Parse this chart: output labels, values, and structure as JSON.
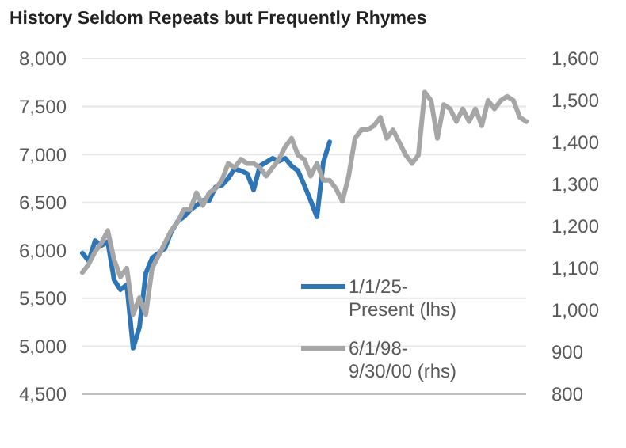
{
  "chart_data": {
    "type": "line",
    "title": "History Seldom Repeats but Frequently Rhymes",
    "categories": [
      null,
      null,
      null,
      null,
      null,
      null,
      null,
      null,
      null,
      null,
      null,
      null,
      null,
      null,
      null,
      null,
      null,
      null,
      null,
      null,
      null,
      null,
      null,
      null,
      null,
      null,
      null,
      null,
      null,
      null,
      null,
      null,
      null,
      null,
      null,
      null,
      null,
      null,
      null,
      null,
      null,
      null,
      null,
      null,
      null,
      null,
      null,
      null,
      null,
      null,
      null,
      null,
      null,
      null,
      null,
      null,
      null,
      null,
      null,
      null,
      null,
      null,
      null,
      null,
      null,
      null,
      null,
      null,
      null,
      null,
      null
    ],
    "series": [
      {
        "name": "1/1/25-Present (lhs)",
        "color": "#2e75b6",
        "values": [
          5970,
          5890,
          6100,
          6050,
          6090,
          5690,
          5590,
          5640,
          4980,
          5200,
          5760,
          5920,
          5970,
          6020,
          6190,
          6300,
          6350,
          6420,
          6470,
          6520,
          6520,
          6660,
          6680,
          6750,
          6850,
          6830,
          6800,
          6630,
          6880,
          6920,
          6960,
          6930,
          6960,
          6880,
          6830,
          6680,
          6520,
          6350,
          6920,
          7130,
          null,
          null,
          null,
          null,
          null,
          null,
          null,
          null,
          null,
          null,
          null,
          null,
          null,
          null,
          null,
          null,
          null,
          null,
          null,
          null,
          null,
          null,
          null,
          null,
          null,
          null,
          null,
          null,
          null,
          null,
          null
        ]
      },
      {
        "name": "6/1/98-9/30/00 (rhs)",
        "color": "#a6a6a6",
        "axis": "y2",
        "values": [
          1090,
          1110,
          1140,
          1160,
          1190,
          1120,
          1080,
          1100,
          990,
          1030,
          990,
          1100,
          1130,
          1160,
          1190,
          1210,
          1240,
          1240,
          1280,
          1250,
          1280,
          1290,
          1310,
          1350,
          1340,
          1360,
          1350,
          1350,
          1340,
          1320,
          1340,
          1360,
          1390,
          1410,
          1370,
          1360,
          1320,
          1350,
          1310,
          1310,
          1290,
          1260,
          1320,
          1410,
          1430,
          1430,
          1440,
          1460,
          1410,
          1430,
          1400,
          1370,
          1350,
          1370,
          1520,
          1500,
          1410,
          1490,
          1480,
          1450,
          1480,
          1450,
          1480,
          1440,
          1500,
          1480,
          1500,
          1510,
          1500,
          1460,
          1450
        ]
      }
    ],
    "ylim": [
      4500,
      8000
    ],
    "yticks": [
      {
        "value": 4500,
        "label": "4,500"
      },
      {
        "value": 5000,
        "label": "5,000"
      },
      {
        "value": 5500,
        "label": "5,500"
      },
      {
        "value": 6000,
        "label": "6,000"
      },
      {
        "value": 6500,
        "label": "6,500"
      },
      {
        "value": 7000,
        "label": "7,000"
      },
      {
        "value": 7500,
        "label": "7,500"
      },
      {
        "value": 8000,
        "label": "8,000"
      }
    ],
    "y2lim": [
      800,
      1600
    ],
    "y2ticks": [
      800,
      900,
      {
        "value": 1000,
        "label": "1,000"
      },
      {
        "value": 1100,
        "label": "1,100"
      },
      {
        "value": 1200,
        "label": "1,200"
      },
      {
        "value": 1300,
        "label": "1,300"
      },
      {
        "value": 1400,
        "label": "1,400"
      },
      {
        "value": 1500,
        "label": "1,500"
      },
      {
        "value": 1600,
        "label": "1,600"
      }
    ],
    "grid": "y",
    "legend": "bottom right",
    "line_style": "solid",
    "marker": "none"
  }
}
